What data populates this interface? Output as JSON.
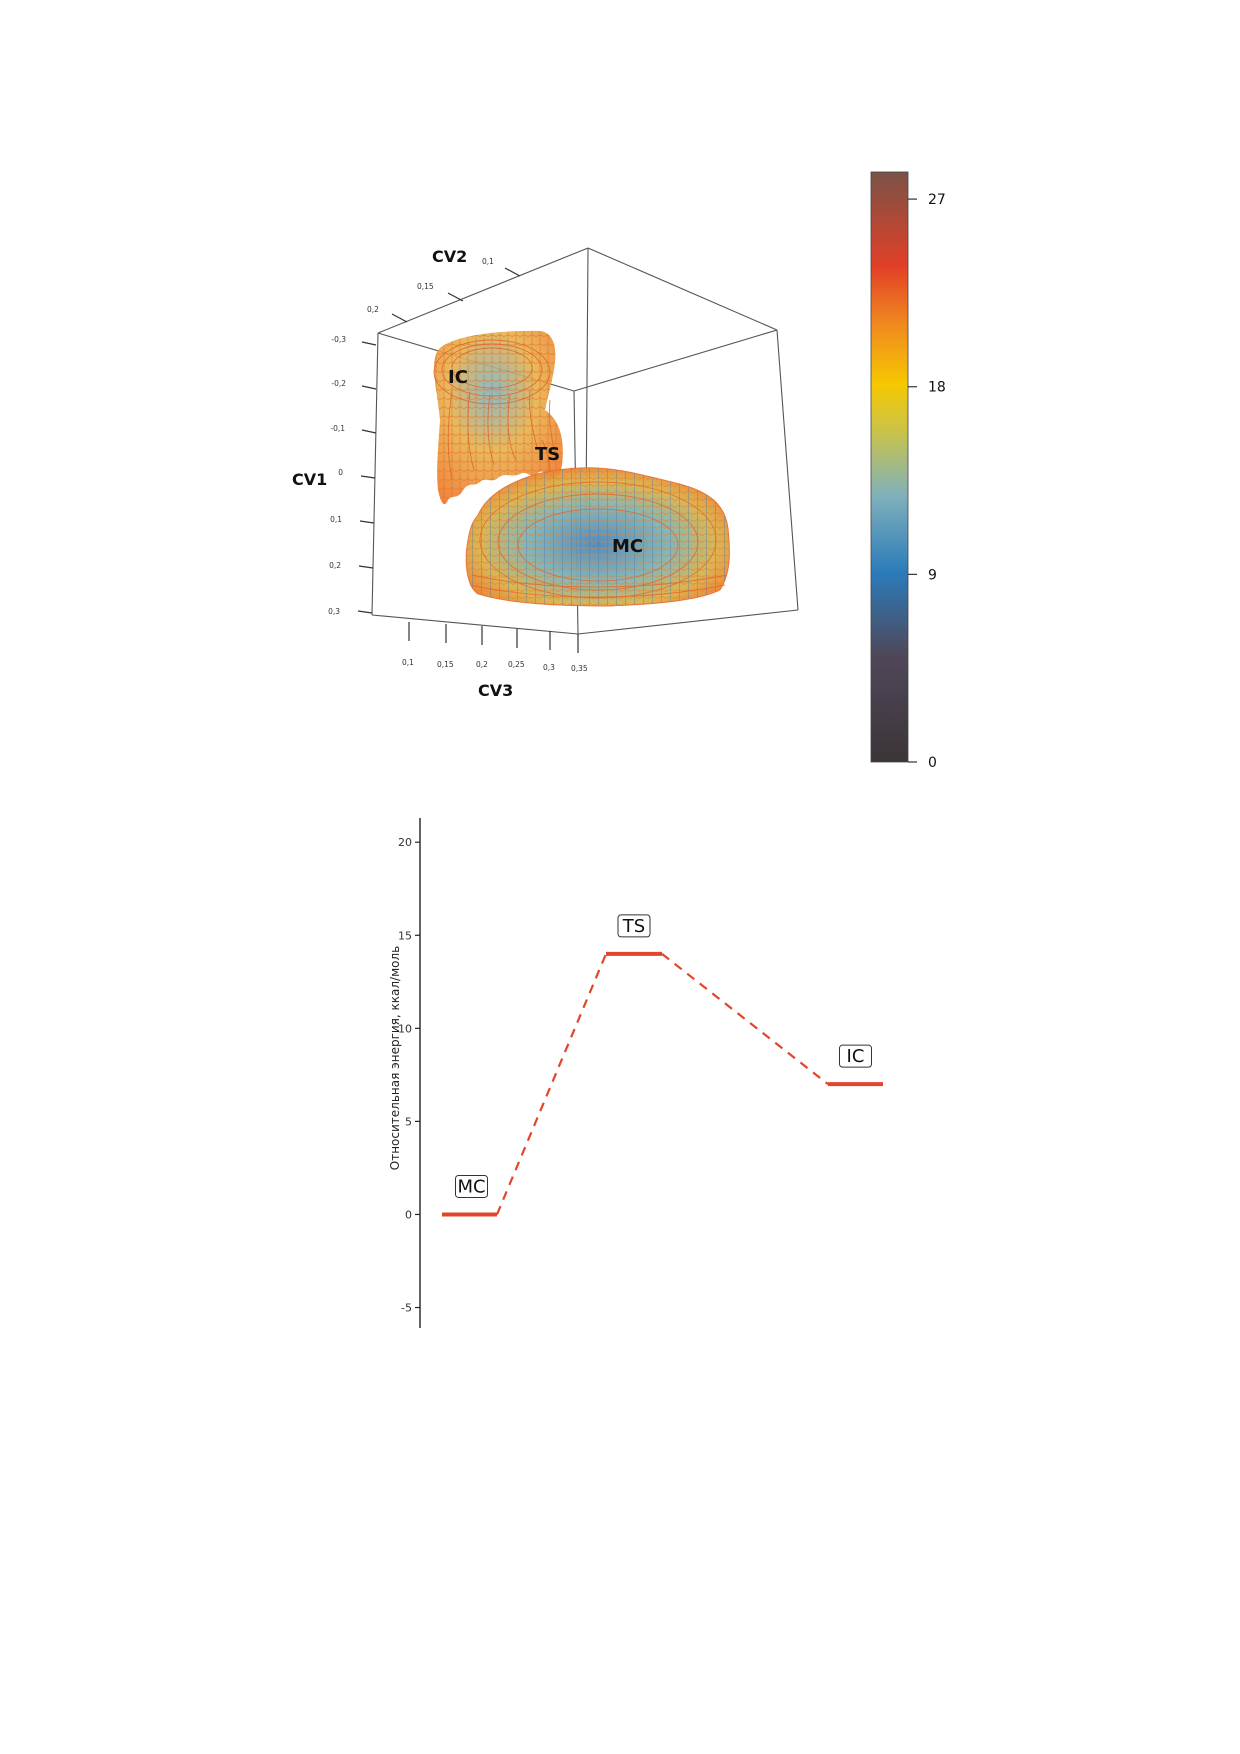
{
  "chart_data": [
    {
      "type": "3d-isosurface",
      "axes": {
        "CV1": {
          "label": "CV1",
          "ticks": [
            "-0,3",
            "-0,2",
            "-0,1",
            "0",
            "0,1",
            "0,2",
            "0,3"
          ]
        },
        "CV2": {
          "label": "CV2",
          "ticks": [
            "0,2",
            "0,15",
            "0,1"
          ]
        },
        "CV3": {
          "label": "CV3",
          "ticks": [
            "0,1",
            "0,15",
            "0,2",
            "0,25",
            "0,3",
            "0,35"
          ]
        }
      },
      "regions": [
        "IC",
        "TS",
        "MC"
      ],
      "colorbar": {
        "ticks": [
          0,
          9,
          18,
          27
        ],
        "tick_labels": [
          "0",
          "9",
          "18",
          "27"
        ],
        "range": [
          0,
          28.3
        ],
        "colormap": [
          "#3b3538",
          "#52495a",
          "#2b7bba",
          "#7fb0bb",
          "#c9c34a",
          "#f6c800",
          "#f08a1e",
          "#e24027",
          "#7a5247"
        ]
      }
    },
    {
      "type": "line",
      "ylabel": "Относительная энергия, ккал/моль",
      "ylim": [
        -6.1,
        21.3
      ],
      "yticks": [
        -5,
        0,
        5,
        10,
        15,
        20
      ],
      "ytick_labels": [
        "-5",
        "0",
        "5",
        "10",
        "15",
        "20"
      ],
      "series": [
        {
          "points": [
            {
              "label": "MC",
              "y": 0
            },
            {
              "label": "TS",
              "y": 14
            },
            {
              "label": "IC",
              "y": 7
            }
          ]
        }
      ],
      "color": "#e2452b"
    }
  ]
}
